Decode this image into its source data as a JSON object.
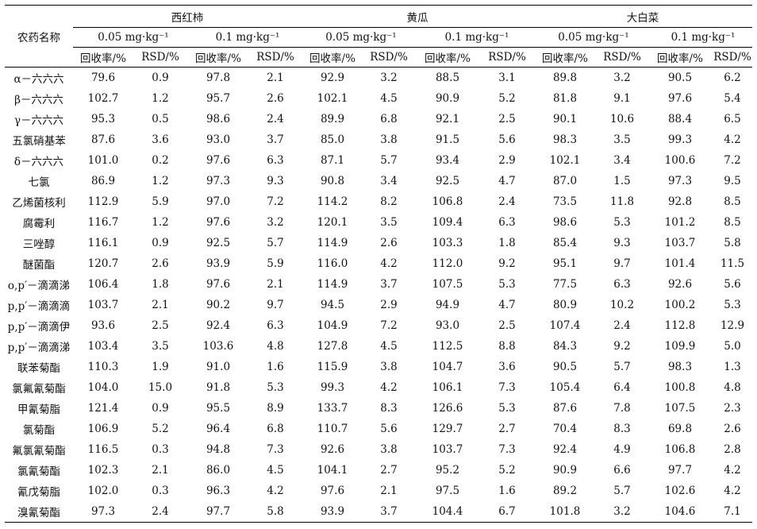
{
  "header": {
    "pesticide_col": "农药名称",
    "crops": [
      "西红柿",
      "黄瓜",
      "大白菜"
    ],
    "levels": [
      "0.05 mg·kg⁻¹",
      "0.1 mg·kg⁻¹"
    ],
    "sub": [
      "回收率/%",
      "RSD/%"
    ]
  },
  "rows": [
    {
      "name": "α－六六六",
      "v": [
        "79.6",
        "0.9",
        "97.8",
        "2.1",
        "92.9",
        "3.2",
        "88.5",
        "3.1",
        "89.8",
        "3.2",
        "90.5",
        "6.2"
      ]
    },
    {
      "name": "β－六六六",
      "v": [
        "102.7",
        "1.2",
        "95.7",
        "2.6",
        "102.1",
        "4.5",
        "90.9",
        "5.2",
        "81.8",
        "9.1",
        "97.6",
        "5.4"
      ]
    },
    {
      "name": "γ－六六六",
      "v": [
        "95.3",
        "0.5",
        "98.6",
        "2.4",
        "89.9",
        "6.8",
        "92.1",
        "2.5",
        "90.1",
        "10.6",
        "88.4",
        "6.5"
      ]
    },
    {
      "name": "五氯硝基苯",
      "v": [
        "87.6",
        "3.6",
        "93.0",
        "3.7",
        "85.0",
        "3.8",
        "91.5",
        "5.6",
        "98.3",
        "3.5",
        "99.3",
        "4.2"
      ]
    },
    {
      "name": "δ－六六六",
      "v": [
        "101.0",
        "0.2",
        "97.6",
        "6.3",
        "87.1",
        "5.7",
        "93.4",
        "2.9",
        "102.1",
        "3.4",
        "100.6",
        "7.2"
      ]
    },
    {
      "name": "七氯",
      "v": [
        "86.9",
        "1.2",
        "97.3",
        "9.3",
        "90.8",
        "3.4",
        "92.5",
        "4.7",
        "87.0",
        "1.5",
        "97.3",
        "9.5"
      ]
    },
    {
      "name": "乙烯菌核利",
      "v": [
        "112.9",
        "5.9",
        "97.0",
        "7.2",
        "114.2",
        "8.2",
        "106.8",
        "2.4",
        "73.5",
        "11.8",
        "92.8",
        "8.5"
      ]
    },
    {
      "name": "腐霉利",
      "v": [
        "116.7",
        "1.2",
        "97.6",
        "3.2",
        "120.1",
        "3.5",
        "109.4",
        "6.3",
        "98.6",
        "5.3",
        "101.2",
        "8.5"
      ]
    },
    {
      "name": "三唑醇",
      "v": [
        "116.1",
        "0.9",
        "92.5",
        "5.7",
        "114.9",
        "2.6",
        "103.3",
        "1.8",
        "85.4",
        "9.3",
        "103.7",
        "5.8"
      ]
    },
    {
      "name": "醚菌酯",
      "v": [
        "120.7",
        "2.6",
        "93.9",
        "5.9",
        "116.0",
        "4.2",
        "112.0",
        "9.2",
        "95.1",
        "9.7",
        "101.4",
        "11.5"
      ]
    },
    {
      "name": "o,p′－滴滴涕",
      "v": [
        "106.4",
        "1.8",
        "97.6",
        "2.1",
        "114.9",
        "3.7",
        "107.5",
        "5.3",
        "77.5",
        "6.3",
        "92.6",
        "5.6"
      ]
    },
    {
      "name": "p,p′－滴滴滴",
      "v": [
        "103.7",
        "2.1",
        "90.2",
        "9.7",
        "94.5",
        "2.9",
        "94.9",
        "4.7",
        "80.9",
        "10.2",
        "100.2",
        "5.3"
      ]
    },
    {
      "name": "p,p′－滴滴伊",
      "v": [
        "93.6",
        "2.5",
        "92.4",
        "6.3",
        "104.9",
        "7.2",
        "93.0",
        "2.5",
        "107.4",
        "2.4",
        "112.8",
        "12.9"
      ]
    },
    {
      "name": "p,p′－滴滴涕",
      "v": [
        "103.4",
        "3.5",
        "103.6",
        "4.8",
        "127.8",
        "4.5",
        "112.5",
        "8.8",
        "84.3",
        "9.2",
        "109.9",
        "5.0"
      ]
    },
    {
      "name": "联苯菊酯",
      "v": [
        "110.3",
        "1.9",
        "91.0",
        "1.6",
        "115.9",
        "3.8",
        "104.7",
        "3.6",
        "90.5",
        "5.7",
        "98.3",
        "1.3"
      ]
    },
    {
      "name": "氯氟氰菊酯",
      "v": [
        "104.0",
        "15.0",
        "91.8",
        "5.3",
        "99.3",
        "4.2",
        "106.1",
        "7.3",
        "105.4",
        "6.4",
        "100.8",
        "4.8"
      ]
    },
    {
      "name": "甲氰菊脂",
      "v": [
        "121.4",
        "0.9",
        "95.5",
        "8.9",
        "133.7",
        "8.3",
        "126.6",
        "5.3",
        "87.6",
        "7.8",
        "107.5",
        "2.3"
      ]
    },
    {
      "name": "氯菊酯",
      "v": [
        "106.9",
        "5.2",
        "96.4",
        "6.8",
        "110.7",
        "5.6",
        "129.7",
        "2.7",
        "70.4",
        "8.3",
        "69.8",
        "2.6"
      ]
    },
    {
      "name": "氟氯氰菊酯",
      "v": [
        "116.5",
        "0.3",
        "94.8",
        "7.3",
        "92.6",
        "3.8",
        "103.7",
        "7.3",
        "92.4",
        "4.9",
        "106.8",
        "2.8"
      ]
    },
    {
      "name": "氯氰菊酯",
      "v": [
        "102.3",
        "2.1",
        "86.0",
        "4.5",
        "104.1",
        "2.7",
        "95.2",
        "5.2",
        "90.9",
        "6.6",
        "97.7",
        "4.2"
      ]
    },
    {
      "name": "氰戊菊脂",
      "v": [
        "102.0",
        "0.3",
        "96.3",
        "4.2",
        "97.6",
        "2.1",
        "97.5",
        "1.6",
        "89.2",
        "5.7",
        "102.6",
        "4.2"
      ]
    },
    {
      "name": "溴氰菊酯",
      "v": [
        "97.3",
        "2.4",
        "97.7",
        "5.8",
        "93.9",
        "3.7",
        "104.4",
        "6.7",
        "101.8",
        "3.2",
        "104.6",
        "7.1"
      ]
    }
  ]
}
